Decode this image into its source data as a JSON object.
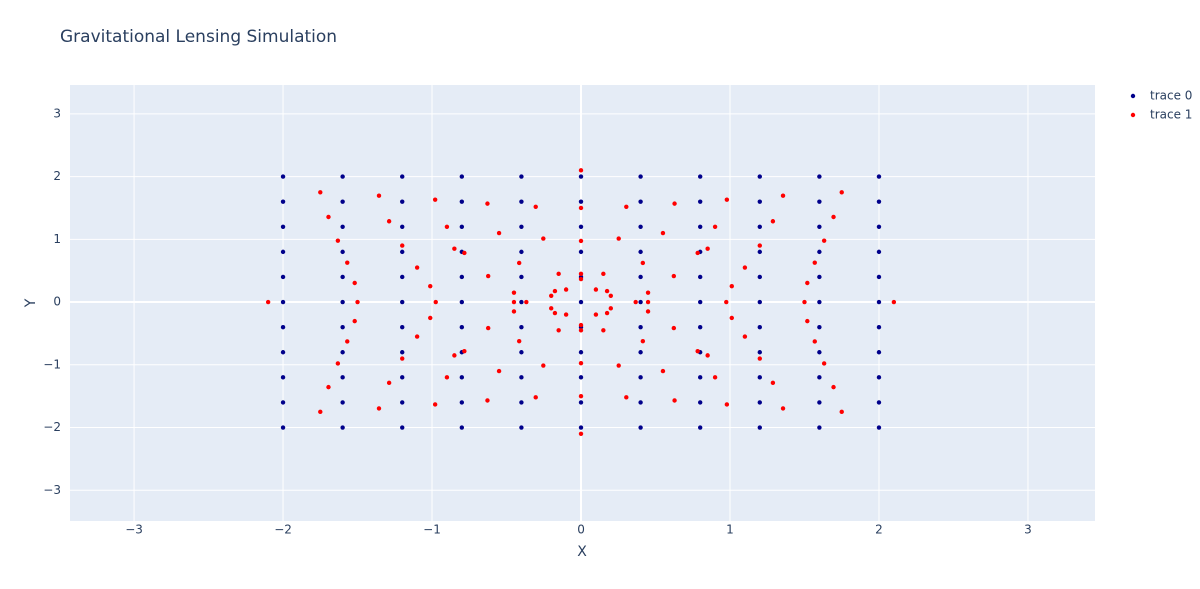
{
  "chart_data": {
    "type": "scatter",
    "title": "Gravitational Lensing Simulation",
    "x_label": "X",
    "y_label": "Y",
    "xlim": [
      -3.43,
      3.45
    ],
    "ylim": [
      -3.49,
      3.46
    ],
    "xticks": [
      {
        "value": -3,
        "label": "−3"
      },
      {
        "value": -2,
        "label": "−2"
      },
      {
        "value": -1,
        "label": "−1"
      },
      0,
      1,
      2,
      3
    ],
    "yticks": [
      {
        "value": -3,
        "label": "−3"
      },
      {
        "value": -2,
        "label": "−2"
      },
      {
        "value": -1,
        "label": "−1"
      },
      0,
      1,
      2,
      3
    ],
    "grid": true,
    "legend": "top-right",
    "series": [
      {
        "name": "trace 0",
        "color": "#00008b",
        "x": [
          -2,
          -2,
          -2,
          -2,
          -2,
          -2,
          -2,
          -2,
          -2,
          -2,
          -2,
          -1.6,
          -1.6,
          -1.6,
          -1.6,
          -1.6,
          -1.6,
          -1.6,
          -1.6,
          -1.6,
          -1.6,
          -1.6,
          -1.2,
          -1.2,
          -1.2,
          -1.2,
          -1.2,
          -1.2,
          -1.2,
          -1.2,
          -1.2,
          -1.2,
          -1.2,
          -0.8,
          -0.8,
          -0.8,
          -0.8,
          -0.8,
          -0.8,
          -0.8,
          -0.8,
          -0.8,
          -0.8,
          -0.8,
          -0.4,
          -0.4,
          -0.4,
          -0.4,
          -0.4,
          -0.4,
          -0.4,
          -0.4,
          -0.4,
          -0.4,
          -0.4,
          0,
          0,
          0,
          0,
          0,
          0,
          0,
          0,
          0,
          0,
          0,
          0.4,
          0.4,
          0.4,
          0.4,
          0.4,
          0.4,
          0.4,
          0.4,
          0.4,
          0.4,
          0.4,
          0.8,
          0.8,
          0.8,
          0.8,
          0.8,
          0.8,
          0.8,
          0.8,
          0.8,
          0.8,
          0.8,
          1.2,
          1.2,
          1.2,
          1.2,
          1.2,
          1.2,
          1.2,
          1.2,
          1.2,
          1.2,
          1.2,
          1.6,
          1.6,
          1.6,
          1.6,
          1.6,
          1.6,
          1.6,
          1.6,
          1.6,
          1.6,
          1.6,
          2,
          2,
          2,
          2,
          2,
          2,
          2,
          2,
          2,
          2,
          2
        ],
        "values": [
          -2,
          -1.6,
          -1.2,
          -0.8,
          -0.4,
          0,
          0.4,
          0.8,
          1.2,
          1.6,
          2,
          -2,
          -1.6,
          -1.2,
          -0.8,
          -0.4,
          0,
          0.4,
          0.8,
          1.2,
          1.6,
          2,
          -2,
          -1.6,
          -1.2,
          -0.8,
          -0.4,
          0,
          0.4,
          0.8,
          1.2,
          1.6,
          2,
          -2,
          -1.6,
          -1.2,
          -0.8,
          -0.4,
          0,
          0.4,
          0.8,
          1.2,
          1.6,
          2,
          -2,
          -1.6,
          -1.2,
          -0.8,
          -0.4,
          0,
          0.4,
          0.8,
          1.2,
          1.6,
          2,
          -2,
          -1.6,
          -1.2,
          -0.8,
          -0.4,
          0,
          0.4,
          0.8,
          1.2,
          1.6,
          2,
          -2,
          -1.6,
          -1.2,
          -0.8,
          -0.4,
          0,
          0.4,
          0.8,
          1.2,
          1.6,
          2,
          -2,
          -1.6,
          -1.2,
          -0.8,
          -0.4,
          0,
          0.4,
          0.8,
          1.2,
          1.6,
          2,
          -2,
          -1.6,
          -1.2,
          -0.8,
          -0.4,
          0,
          0.4,
          0.8,
          1.2,
          1.6,
          2,
          -2,
          -1.6,
          -1.2,
          -0.8,
          -0.4,
          0,
          0.4,
          0.8,
          1.2,
          1.6,
          2,
          -2,
          -1.6,
          -1.2,
          -0.8,
          -0.4,
          0,
          0.4,
          0.8,
          1.2,
          1.6,
          2
        ]
      },
      {
        "name": "trace 1",
        "color": "#ff0000",
        "x": [
          -1.75,
          -1.695,
          -1.632,
          -1.569,
          -1.519,
          -1.5,
          -1.519,
          -1.569,
          -1.632,
          -1.695,
          -1.75,
          -1.356,
          -1.288,
          -1.2,
          -1.1,
          -1.012,
          -0.975,
          -1.012,
          -1.1,
          -1.2,
          -1.288,
          -1.356,
          -0.979,
          -0.9,
          -0.783,
          -0.623,
          -0.45,
          -0.367,
          -0.45,
          -0.623,
          -0.783,
          -0.9,
          -0.979,
          -0.628,
          -0.55,
          -0.415,
          -0.175,
          0.2,
          0.45,
          0.2,
          -0.175,
          -0.415,
          -0.55,
          -0.628,
          -0.304,
          -0.253,
          -0.15,
          0.1,
          0.85,
          2.1,
          0.85,
          0.1,
          -0.15,
          -0.253,
          -0.304,
          0,
          0,
          0,
          0,
          0,
          0,
          0,
          0,
          0,
          0,
          0.304,
          0.253,
          0.15,
          -0.1,
          -0.85,
          -2.1,
          -0.85,
          -0.1,
          0.15,
          0.253,
          0.304,
          0.628,
          0.55,
          0.415,
          0.175,
          -0.2,
          -0.45,
          -0.2,
          0.175,
          0.415,
          0.55,
          0.628,
          0.979,
          0.9,
          0.783,
          0.623,
          0.45,
          0.367,
          0.45,
          0.623,
          0.783,
          0.9,
          0.979,
          1.356,
          1.288,
          1.2,
          1.1,
          1.012,
          0.975,
          1.012,
          1.1,
          1.2,
          1.288,
          1.356,
          1.75,
          1.695,
          1.632,
          1.569,
          1.519,
          1.5,
          1.519,
          1.569,
          1.632,
          1.695,
          1.75
        ],
        "values": [
          -1.75,
          -1.356,
          -0.979,
          -0.628,
          -0.304,
          0,
          0.304,
          0.628,
          0.979,
          1.356,
          1.75,
          -1.695,
          -1.288,
          -0.9,
          -0.55,
          -0.253,
          0,
          0.253,
          0.55,
          0.9,
          1.288,
          1.695,
          -1.632,
          -1.2,
          -0.783,
          -0.415,
          -0.15,
          0,
          0.15,
          0.415,
          0.783,
          1.2,
          1.632,
          -1.569,
          -1.1,
          -0.623,
          -0.175,
          0.1,
          0,
          -0.1,
          0.175,
          0.623,
          1.1,
          1.569,
          -1.519,
          -1.012,
          -0.45,
          0.2,
          0.85,
          0,
          -0.85,
          -0.2,
          0.45,
          1.012,
          1.519,
          -1.5,
          -0.975,
          -0.367,
          0.45,
          2.1,
          -2.1,
          -0.45,
          0.367,
          0.975,
          1.5,
          -1.519,
          -1.012,
          -0.45,
          0.2,
          0.85,
          0,
          -0.85,
          -0.2,
          0.45,
          1.012,
          1.519,
          -1.569,
          -1.1,
          -0.623,
          -0.175,
          0.1,
          0,
          -0.1,
          0.175,
          0.623,
          1.1,
          1.569,
          -1.632,
          -1.2,
          -0.783,
          -0.415,
          -0.15,
          0,
          0.15,
          0.415,
          0.783,
          1.2,
          1.632,
          -1.695,
          -1.288,
          -0.9,
          -0.55,
          -0.253,
          0,
          0.253,
          0.55,
          0.9,
          1.288,
          1.695,
          -1.75,
          -1.356,
          -0.979,
          -0.628,
          -0.304,
          0,
          0.304,
          0.628,
          0.979,
          1.356,
          1.75
        ]
      }
    ]
  }
}
